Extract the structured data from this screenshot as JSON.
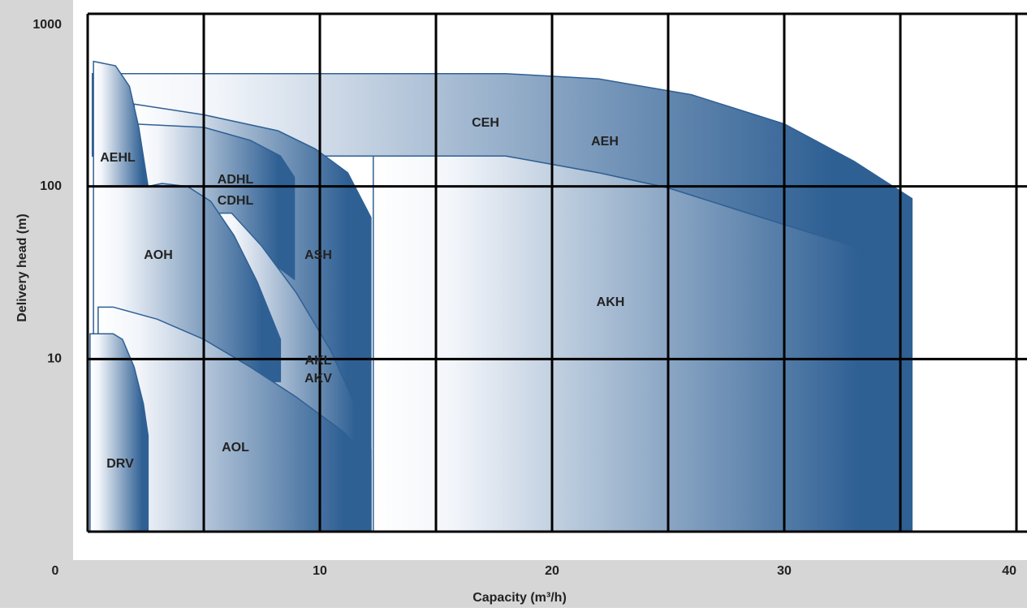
{
  "chart_data": {
    "type": "area-regions",
    "xlabel": "Capacity (m³/h)",
    "ylabel": "Delivery head (m)",
    "xlim": [
      0,
      40
    ],
    "ylim": [
      1,
      1000
    ],
    "yscale": "log",
    "xticks": [
      0,
      10,
      20,
      30,
      40
    ],
    "x_minor_ticks": [
      5,
      15,
      25,
      35
    ],
    "yticks": [
      10,
      100,
      1000
    ],
    "grid": true,
    "color": "#2f6094",
    "regions": [
      {
        "labels": [
          "CEH",
          "AEH"
        ],
        "x": [
          0.2,
          18,
          22,
          26,
          30,
          33,
          35.5,
          35.5,
          33,
          30,
          25,
          22,
          18,
          2,
          0.2
        ],
        "y": [
          450,
          450,
          420,
          340,
          230,
          140,
          85,
          30,
          45,
          60,
          98,
          120,
          150,
          150,
          150
        ]
      },
      {
        "labels": [
          "AKH"
        ],
        "x": [
          12.3,
          18,
          22,
          25,
          30,
          33,
          35.5,
          35.5,
          12.3
        ],
        "y": [
          150,
          150,
          120,
          98,
          60,
          45,
          30,
          1,
          1
        ]
      },
      {
        "labels": [
          "ASH"
        ],
        "x": [
          2,
          5,
          8.2,
          9.8,
          11.2,
          12.2,
          12.2,
          2
        ],
        "y": [
          300,
          260,
          210,
          165,
          120,
          66,
          1,
          1
        ]
      },
      {
        "labels": [
          "ADHL",
          "CDHL"
        ],
        "x": [
          2,
          5,
          7,
          8.3,
          8.9,
          8.9,
          7.5,
          6.2,
          2
        ],
        "y": [
          230,
          220,
          185,
          150,
          113,
          29,
          40,
          60,
          60
        ]
      },
      {
        "labels": [
          "AKL",
          "AKV"
        ],
        "x": [
          5.3,
          6.2,
          7.5,
          9,
          10.5,
          11.5,
          12.2,
          12.2,
          5.3
        ],
        "y": [
          70,
          70,
          45,
          24,
          11,
          5.5,
          3,
          1,
          1
        ]
      },
      {
        "labels": [
          "AEHL"
        ],
        "x": [
          0.25,
          1.2,
          1.8,
          2.2,
          2.6,
          0.25
        ],
        "y": [
          530,
          500,
          380,
          220,
          100,
          100
        ]
      },
      {
        "labels": [
          "AOH"
        ],
        "x": [
          0.25,
          2.6,
          3.2,
          4.3,
          5.3,
          6.3,
          7.3,
          8.3,
          8.3,
          0.25
        ],
        "y": [
          100,
          100,
          104,
          100,
          82,
          52,
          28,
          13,
          7.4,
          7.4
        ]
      },
      {
        "labels": [
          "AOL"
        ],
        "x": [
          0.45,
          1.1,
          3,
          5,
          7,
          9,
          11,
          12.2,
          12.2,
          0.45
        ],
        "y": [
          20,
          20,
          17,
          13,
          9,
          6,
          3.8,
          2.6,
          1,
          1
        ]
      },
      {
        "labels": [
          "DRV"
        ],
        "x": [
          0.1,
          1.1,
          1.5,
          2.0,
          2.4,
          2.6,
          2.6,
          0.1
        ],
        "y": [
          14,
          14,
          13,
          9,
          5.5,
          3.6,
          1,
          1
        ]
      }
    ]
  }
}
